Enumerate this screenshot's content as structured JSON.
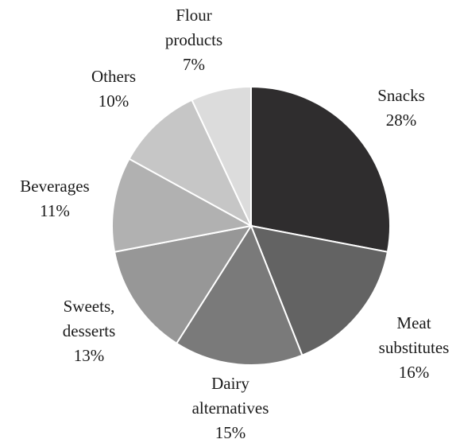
{
  "chart_data": {
    "type": "pie",
    "title": "",
    "slices": [
      {
        "label_lines": [
          "Snacks"
        ],
        "value_label": "28%",
        "value": 28,
        "color": "#2f2d2e"
      },
      {
        "label_lines": [
          "Meat",
          "substitutes"
        ],
        "value_label": "16%",
        "value": 16,
        "color": "#636363"
      },
      {
        "label_lines": [
          "Dairy",
          "alternatives"
        ],
        "value_label": "15%",
        "value": 15,
        "color": "#7a7a7a"
      },
      {
        "label_lines": [
          "Sweets,",
          "desserts"
        ],
        "value_label": "13%",
        "value": 13,
        "color": "#979797"
      },
      {
        "label_lines": [
          "Beverages"
        ],
        "value_label": "11%",
        "value": 11,
        "color": "#b1b1b1"
      },
      {
        "label_lines": [
          "Others"
        ],
        "value_label": "10%",
        "value": 10,
        "color": "#c6c6c6"
      },
      {
        "label_lines": [
          "Flour",
          "products"
        ],
        "value_label": "7%",
        "value": 7,
        "color": "#dcdcdc"
      }
    ]
  }
}
